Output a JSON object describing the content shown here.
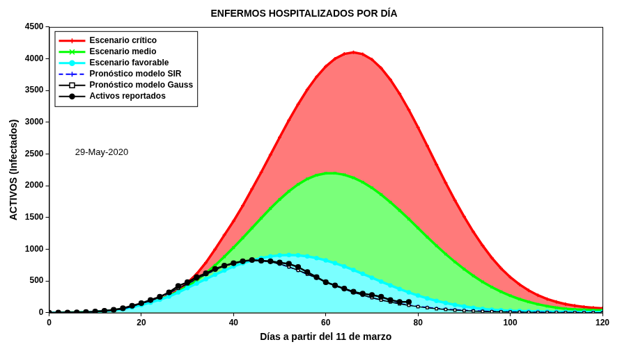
{
  "chart_data": {
    "type": "line",
    "title": "ENFERMOS HOSPITALIZADOS POR DÍA",
    "x_label": "Días a partir del 11 de marzo",
    "y_label": "ACTIVOS (Infectados)",
    "annotation": "29-May-2020",
    "xlim": [
      0,
      120
    ],
    "xticks": [
      0,
      20,
      40,
      60,
      80,
      100,
      120
    ],
    "ylim": [
      0,
      4500
    ],
    "yticks": [
      0,
      500,
      1000,
      1500,
      2000,
      2500,
      3000,
      3500,
      4000,
      4500
    ],
    "grid": false,
    "legend": "upper left",
    "x": [
      0,
      2,
      4,
      6,
      8,
      10,
      12,
      14,
      16,
      18,
      20,
      22,
      24,
      26,
      28,
      30,
      32,
      34,
      36,
      38,
      40,
      42,
      44,
      46,
      48,
      50,
      52,
      54,
      56,
      58,
      60,
      62,
      64,
      66,
      68,
      70,
      72,
      74,
      76,
      78,
      80,
      82,
      84,
      86,
      88,
      90,
      92,
      94,
      96,
      98,
      100,
      102,
      104,
      106,
      108,
      110,
      112,
      114,
      116,
      118,
      120
    ],
    "series": [
      {
        "name": "Escenario crítico",
        "type": "area",
        "color": "#ff0000",
        "marker": "plus",
        "line_style": "solid",
        "values": [
          0,
          1,
          2,
          4,
          8,
          14,
          24,
          38,
          58,
          85,
          120,
          160,
          210,
          270,
          350,
          470,
          610,
          790,
          1000,
          1223,
          1443,
          1686,
          1949,
          2212,
          2487,
          2763,
          3031,
          3283,
          3515,
          3715,
          3878,
          4000,
          4075,
          4100,
          4072,
          3988,
          3852,
          3670,
          3449,
          3195,
          2918,
          2628,
          2334,
          2046,
          1770,
          1513,
          1273,
          1058,
          865,
          699,
          560,
          445,
          350,
          275,
          215,
          170,
          135,
          110,
          90,
          78,
          68
        ]
      },
      {
        "name": "Escenario medio",
        "type": "area",
        "color": "#00ff00",
        "marker": "x",
        "line_style": "solid",
        "values": [
          0,
          1,
          2,
          4,
          8,
          14,
          24,
          38,
          58,
          85,
          120,
          160,
          206,
          265,
          333,
          418,
          513,
          623,
          746,
          881,
          1026,
          1178,
          1334,
          1490,
          1642,
          1784,
          1912,
          2021,
          2107,
          2166,
          2196,
          2197,
          2173,
          2125,
          2056,
          1967,
          1861,
          1741,
          1611,
          1475,
          1334,
          1192,
          1054,
          923,
          800,
          686,
          581,
          486,
          403,
          330,
          268,
          214,
          170,
          133,
          103,
          79,
          62,
          52,
          46,
          42,
          40
        ]
      },
      {
        "name": "Escenario favorable",
        "type": "area",
        "color": "#00ffff",
        "marker": "circle",
        "line_style": "solid",
        "values": [
          0,
          1,
          2,
          4,
          8,
          14,
          24,
          38,
          58,
          85,
          120,
          160,
          205,
          255,
          320,
          390,
          460,
          530,
          600,
          665,
          729,
          780,
          824,
          861,
          888,
          904,
          910,
          904,
          888,
          861,
          824,
          780,
          729,
          673,
          613,
          552,
          490,
          431,
          374,
          320,
          271,
          226,
          187,
          153,
          123,
          98,
          77,
          60,
          46,
          38,
          32,
          27,
          23,
          20,
          17,
          15,
          13,
          12,
          11,
          10,
          9
        ]
      },
      {
        "name": "Pronóstico modelo SIR",
        "type": "line",
        "color": "#0000ff",
        "marker": "plus",
        "line_style": "dashed",
        "values": [
          0,
          1,
          2,
          4,
          8,
          14,
          24,
          38,
          60,
          95,
          140,
          185,
          240,
          305,
          380,
          450,
          530,
          600,
          670,
          730,
          775,
          805,
          820,
          820,
          800,
          765,
          720,
          665,
          605,
          545,
          485,
          425,
          370,
          320,
          275,
          235,
          200,
          170,
          145,
          120,
          100,
          85,
          70,
          58,
          48,
          40,
          33,
          27,
          22,
          18,
          15,
          12,
          10,
          8,
          6,
          5,
          4,
          3,
          2,
          2,
          1
        ]
      },
      {
        "name": "Pronóstico modelo Gauss",
        "type": "line",
        "color": "#000000",
        "marker": "square",
        "line_style": "solid",
        "values": [
          0,
          1,
          3,
          5,
          9,
          15,
          26,
          40,
          62,
          98,
          145,
          190,
          245,
          310,
          385,
          455,
          535,
          605,
          675,
          735,
          780,
          810,
          825,
          822,
          802,
          768,
          722,
          668,
          608,
          548,
          488,
          428,
          372,
          322,
          277,
          237,
          200,
          168,
          140,
          116,
          95,
          78,
          63,
          51,
          41,
          33,
          26,
          21,
          17,
          13,
          10,
          8,
          6,
          5,
          4,
          3,
          2,
          2,
          1,
          1,
          0
        ]
      },
      {
        "name": "Activos reportados",
        "type": "line",
        "color": "#000000",
        "marker": "circle",
        "line_style": "solid",
        "values": [
          0,
          1,
          2,
          4,
          10,
          18,
          30,
          45,
          70,
          110,
          150,
          200,
          250,
          320,
          420,
          480,
          560,
          620,
          690,
          740,
          780,
          810,
          830,
          820,
          810,
          790,
          770,
          720,
          640,
          560,
          480,
          430,
          380,
          330,
          300,
          280,
          250,
          200,
          170,
          170,
          null,
          null,
          null,
          null,
          null,
          null,
          null,
          null,
          null,
          null,
          null,
          null,
          null,
          null,
          null,
          null,
          null,
          null,
          null,
          null,
          null
        ]
      }
    ]
  }
}
